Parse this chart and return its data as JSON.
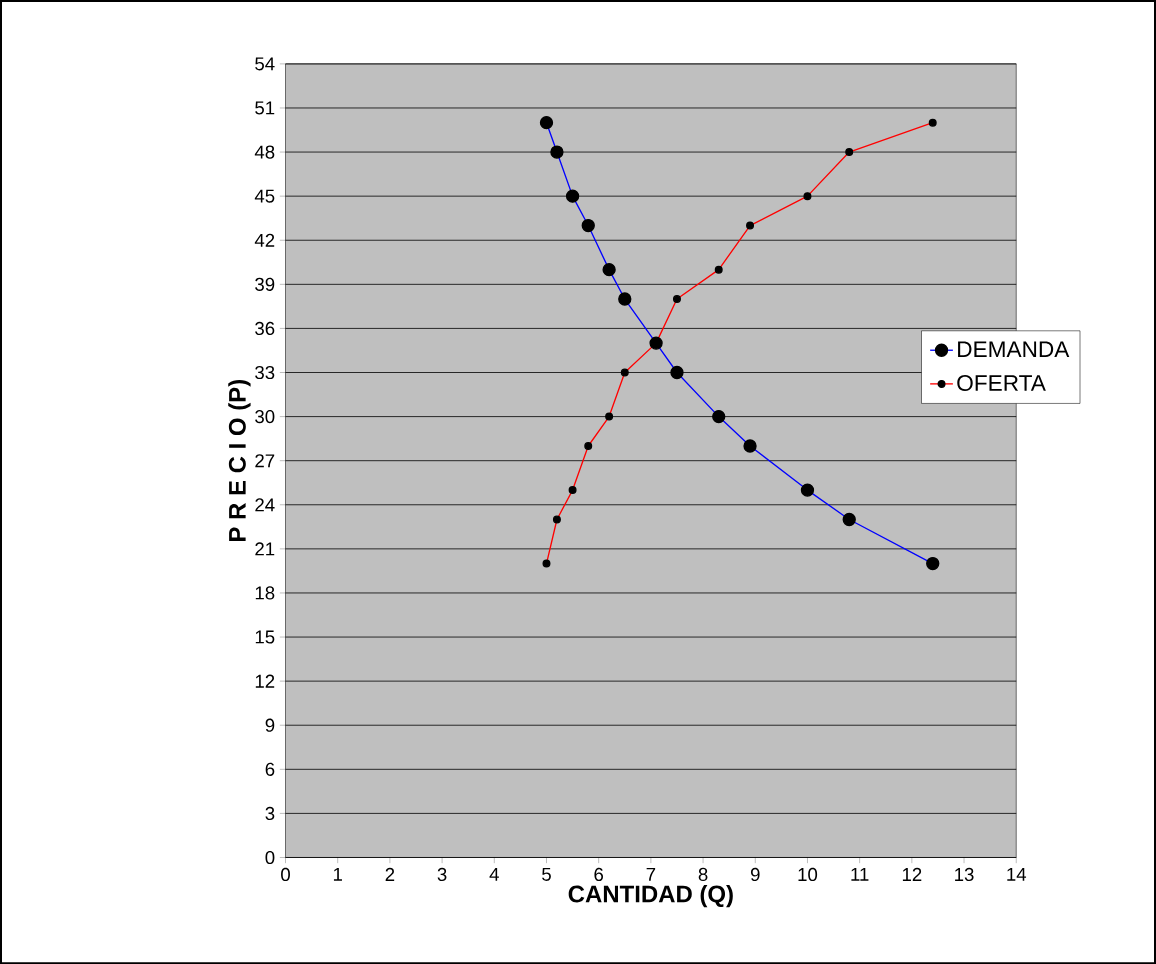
{
  "chart_data": {
    "type": "line",
    "xlabel": "CANTIDAD (Q)",
    "ylabel": "P R E C I O (P)",
    "xlim": [
      0,
      14
    ],
    "xticks": [
      0,
      1,
      2,
      3,
      4,
      5,
      6,
      7,
      8,
      9,
      10,
      11,
      12,
      13,
      14
    ],
    "ylim": [
      0,
      54
    ],
    "yticks": [
      0,
      3,
      6,
      9,
      12,
      15,
      18,
      21,
      24,
      27,
      30,
      33,
      36,
      39,
      42,
      45,
      48,
      51,
      54
    ],
    "grid": "y",
    "legend": "right",
    "marker": "circle",
    "series": [
      {
        "name": "DEMANDA",
        "color": "#0000ff",
        "x": [
          5,
          5.2,
          5.5,
          5.8,
          6.2,
          6.5,
          7.1,
          7.5,
          8.3,
          8.9,
          10,
          10.8,
          12.4
        ],
        "values": [
          50,
          48,
          45,
          43,
          40,
          38,
          35,
          33,
          30,
          28,
          25,
          23,
          20
        ]
      },
      {
        "name": "OFERTA",
        "color": "#ff0000",
        "x": [
          5,
          5.2,
          5.5,
          5.8,
          6.2,
          6.5,
          7.1,
          7.5,
          8.3,
          8.9,
          10,
          10.8,
          12.4
        ],
        "values": [
          20,
          23,
          25,
          28,
          30,
          33,
          35,
          38,
          40,
          43,
          45,
          48,
          50
        ]
      }
    ]
  }
}
